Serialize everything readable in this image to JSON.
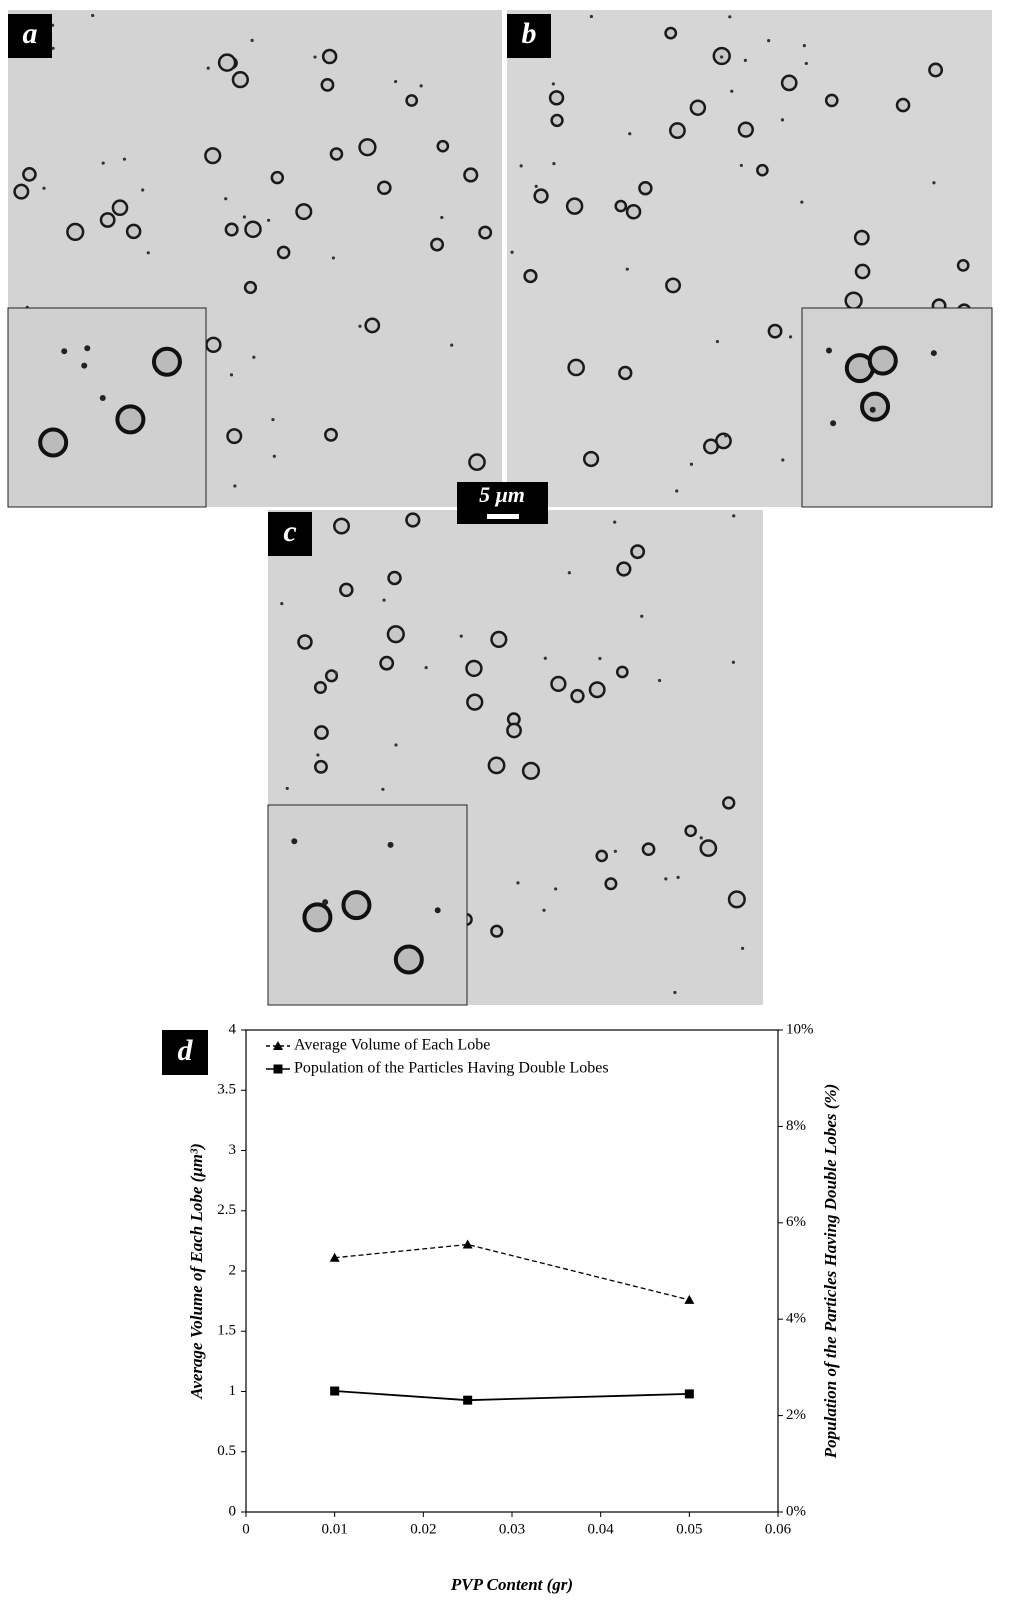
{
  "panels": [
    {
      "label": "a"
    },
    {
      "label": "b"
    },
    {
      "label": "c"
    }
  ],
  "scale_bar": "5 μm",
  "chart_data": {
    "type": "line",
    "panel_label": "d",
    "x_label": "PVP Content (gr)",
    "y_label": "Average Volume of Each Lobe (μm³)",
    "y2_label": "Population of the Particles Having Double Lobes (%)",
    "xlim": [
      0,
      0.06
    ],
    "xticks": [
      0,
      0.01,
      0.02,
      0.03,
      0.04,
      0.05,
      0.06
    ],
    "ylim": [
      0,
      4
    ],
    "yticks": [
      0,
      0.5,
      1,
      1.5,
      2,
      2.5,
      3,
      3.5,
      4
    ],
    "y2lim": [
      0,
      10
    ],
    "y2ticks": [
      {
        "value": 0,
        "label": "0%"
      },
      {
        "value": 2,
        "label": "2%"
      },
      {
        "value": 4,
        "label": "4%"
      },
      {
        "value": 6,
        "label": "6%"
      },
      {
        "value": 8,
        "label": "8%"
      },
      {
        "value": 10,
        "label": "10%"
      }
    ],
    "x": [
      0.01,
      0.025,
      0.05
    ],
    "series": [
      {
        "name": "Average Volume of Each Lobe",
        "color": "#000000",
        "marker": "triangle",
        "dashed": true,
        "values": [
          2.11,
          2.22,
          1.76
        ]
      },
      {
        "name": "Population of the Particles Having Double Lobes",
        "color": "#000000",
        "marker": "square",
        "dashed": false,
        "axis": "y2",
        "values": [
          2.51,
          2.32,
          2.45
        ]
      }
    ]
  }
}
